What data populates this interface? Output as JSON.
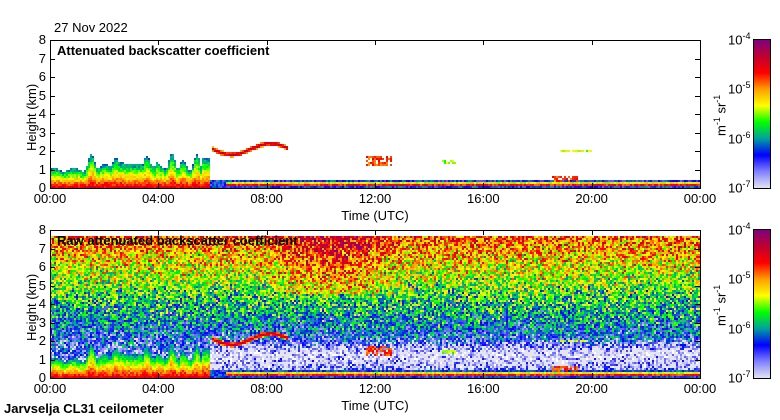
{
  "date": "27 Nov 2022",
  "footer": "Jarvselja CL31 ceilometer",
  "chart_data": [
    {
      "type": "heatmap",
      "title": "Attenuated backscatter coefficient",
      "xlabel": "Time (UTC)",
      "ylabel": "Height (km)",
      "xticks": [
        "00:00",
        "04:00",
        "08:00",
        "12:00",
        "16:00",
        "20:00",
        "00:00"
      ],
      "yticks": [
        "0",
        "1",
        "2",
        "3",
        "4",
        "5",
        "6",
        "7",
        "8"
      ],
      "xlim_hours": [
        0,
        24
      ],
      "ylim_km": [
        0,
        8
      ],
      "colorbar": {
        "unit": "m-1 sr-1",
        "scale": "log",
        "range": [
          1e-07,
          0.0001
        ],
        "ticks": [
          "10",
          "10",
          "10",
          "10"
        ],
        "exponents": [
          "-4",
          "-5",
          "-6",
          "-7"
        ]
      },
      "masked_below_log10": -6.6,
      "noise": false
    },
    {
      "type": "heatmap",
      "title": "Raw attenuated backscatter coefficient",
      "xlabel": "Time (UTC)",
      "ylabel": "Height (km)",
      "xticks": [
        "00:00",
        "04:00",
        "08:00",
        "12:00",
        "16:00",
        "20:00",
        "00:00"
      ],
      "yticks": [
        "0",
        "1",
        "2",
        "3",
        "4",
        "5",
        "6",
        "7",
        "8"
      ],
      "xlim_hours": [
        0,
        24
      ],
      "ylim_km": [
        0,
        8
      ],
      "colorbar": {
        "unit": "m-1 sr-1",
        "scale": "log",
        "range": [
          1e-07,
          0.0001
        ],
        "ticks": [
          "10",
          "10",
          "10",
          "10"
        ],
        "exponents": [
          "-4",
          "-5",
          "-6",
          "-7"
        ]
      },
      "masked_below_log10": null,
      "noise": true
    }
  ],
  "features": [
    {
      "name": "boundary layer",
      "t": [
        0,
        5.8
      ],
      "h": [
        0,
        1.0
      ],
      "log10": -4.9
    },
    {
      "name": "plumes",
      "t": [
        1.3,
        5.6
      ],
      "h": [
        0,
        1.8
      ],
      "log10": -5.6
    },
    {
      "name": "elevated cloud",
      "t": [
        6.0,
        8.8
      ],
      "h": [
        1.9,
        2.2
      ],
      "log10": -4.5
    },
    {
      "name": "low layer",
      "t": [
        5.8,
        24
      ],
      "h": [
        0.1,
        0.4
      ],
      "log10": -6.1
    },
    {
      "name": "surface line",
      "t": [
        6.5,
        24
      ],
      "h": [
        0.12,
        0.2
      ],
      "log10": -4.6
    },
    {
      "name": "cloud patch",
      "t": [
        11.7,
        12.6
      ],
      "h": [
        1.2,
        1.7
      ],
      "log10": -4.8
    },
    {
      "name": "cloud patch",
      "t": [
        14.5,
        15.0
      ],
      "h": [
        1.35,
        1.5
      ],
      "log10": -5.5
    },
    {
      "name": "cloud patch",
      "t": [
        18.8,
        20.0
      ],
      "h": [
        1.9,
        2.1
      ],
      "log10": -5.4
    },
    {
      "name": "cloud patch",
      "t": [
        18.5,
        19.5
      ],
      "h": [
        0.3,
        0.6
      ],
      "log10": -4.8
    }
  ],
  "colors": {
    "stops": [
      "#e4e4f2",
      "#8080ff",
      "#0000ff",
      "#00a0a0",
      "#00ff00",
      "#ffff00",
      "#ffa000",
      "#ff0000",
      "#c00030",
      "#800080"
    ]
  }
}
